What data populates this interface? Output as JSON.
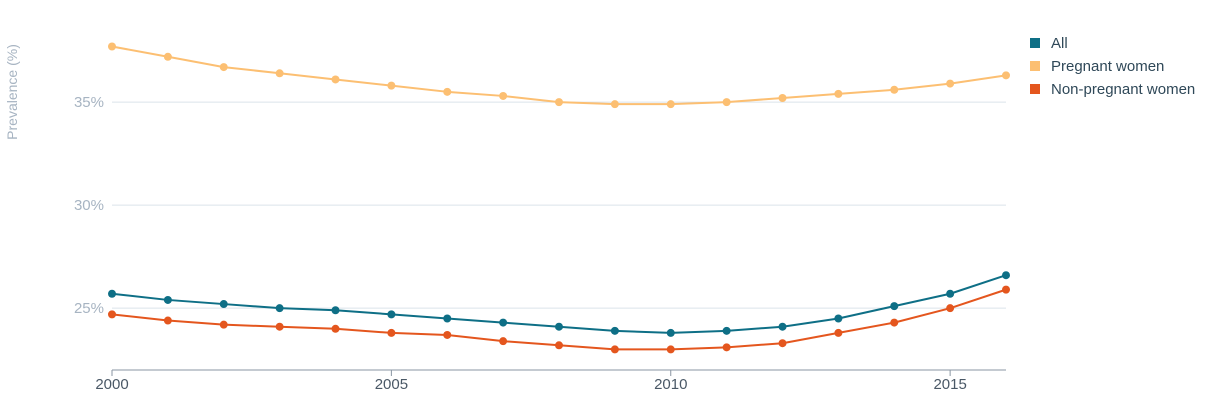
{
  "chart_data": {
    "type": "line",
    "ylabel": "Prevalence (%)",
    "xlabel": "",
    "title": "",
    "x": [
      2000,
      2001,
      2002,
      2003,
      2004,
      2005,
      2006,
      2007,
      2008,
      2009,
      2010,
      2011,
      2012,
      2013,
      2014,
      2015,
      2016
    ],
    "xlim": [
      2000,
      2016
    ],
    "ylim": [
      22,
      38.5
    ],
    "x_ticks": [
      2000,
      2005,
      2010,
      2015
    ],
    "x_tick_labels": [
      "2000",
      "2005",
      "2010",
      "2015"
    ],
    "y_ticks": [
      25,
      30,
      35
    ],
    "y_tick_labels": [
      "25%",
      "30%",
      "35%"
    ],
    "grid": "horizontal",
    "legend_position": "top-right",
    "series": [
      {
        "name": "All",
        "color": "#0e6f86",
        "values": [
          25.7,
          25.4,
          25.2,
          25.0,
          24.9,
          24.7,
          24.5,
          24.3,
          24.1,
          23.9,
          23.8,
          23.9,
          24.1,
          24.5,
          25.1,
          25.7,
          26.6
        ]
      },
      {
        "name": "Pregnant women",
        "color": "#fcbf72",
        "values": [
          37.7,
          37.2,
          36.7,
          36.4,
          36.1,
          35.8,
          35.5,
          35.3,
          35.0,
          34.9,
          34.9,
          35.0,
          35.2,
          35.4,
          35.6,
          35.9,
          36.3
        ]
      },
      {
        "name": "Non-pregnant women",
        "color": "#e4561e",
        "values": [
          24.7,
          24.4,
          24.2,
          24.1,
          24.0,
          23.8,
          23.7,
          23.4,
          23.2,
          23.0,
          23.0,
          23.1,
          23.3,
          23.8,
          24.3,
          25.0,
          25.9
        ]
      }
    ]
  }
}
